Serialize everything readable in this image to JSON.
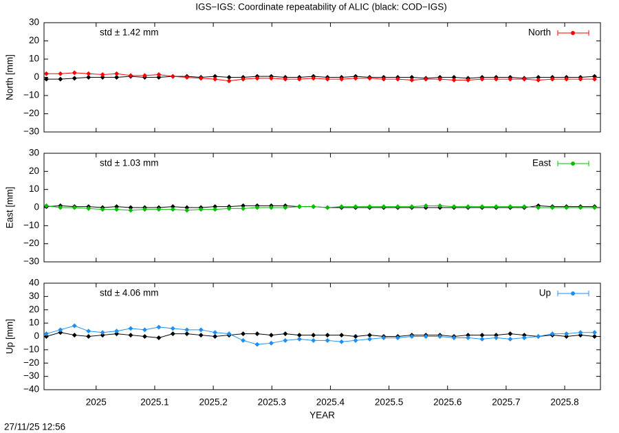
{
  "title": "IGS−IGS: Coordinate repeatability of ALIC (black: COD−IGS)",
  "timestamp": "27/11/25 12:56",
  "chart_data": [
    {
      "type": "line",
      "y_label": "North [mm]",
      "annotation": "std ± 1.42 mm",
      "legend": "top right",
      "xlim": [
        2024.911,
        2025.861
      ],
      "ylim": [
        -30,
        30
      ],
      "yticks": [
        30,
        20,
        10,
        0,
        {
          "value": -10,
          "label": "−10"
        },
        {
          "value": -20,
          "label": "−20"
        },
        {
          "value": -30,
          "label": "−30"
        }
      ],
      "x": [
        2024.915,
        2024.939,
        2024.963,
        2024.987,
        2025.011,
        2025.035,
        2025.059,
        2025.083,
        2025.107,
        2025.131,
        2025.155,
        2025.179,
        2025.203,
        2025.227,
        2025.251,
        2025.275,
        2025.299,
        2025.323,
        2025.347,
        2025.371,
        2025.395,
        2025.419,
        2025.443,
        2025.467,
        2025.491,
        2025.515,
        2025.539,
        2025.563,
        2025.587,
        2025.611,
        2025.635,
        2025.659,
        2025.683,
        2025.707,
        2025.731,
        2025.755,
        2025.779,
        2025.803,
        2025.827,
        2025.851
      ],
      "series": [
        {
          "color": "#000000",
          "values": [
            -1,
            -1,
            -0.5,
            0,
            0,
            0,
            0.5,
            0,
            0,
            0.5,
            0.5,
            0,
            0.5,
            0,
            0,
            0.5,
            0.5,
            0,
            0,
            0.5,
            0,
            0,
            0.5,
            0,
            0,
            0,
            0,
            -0.5,
            0,
            0,
            -0.5,
            0,
            0,
            0,
            -0.5,
            0,
            0,
            0,
            0,
            0.5
          ]
        },
        {
          "name": "North",
          "color": "#ff0000",
          "values": [
            2,
            2,
            2.5,
            2,
            1.5,
            2,
            1,
            1,
            1.5,
            0.5,
            0,
            -0.5,
            -1,
            -2,
            -1,
            -0.5,
            -0.5,
            -1,
            -1,
            -0.5,
            -1,
            -1,
            -0.5,
            -0.5,
            -1,
            -1,
            -1.5,
            -1,
            -1,
            -1.5,
            -1.5,
            -1,
            -1,
            -1,
            -1,
            -1.5,
            -1,
            -1,
            -1,
            -1
          ]
        }
      ]
    },
    {
      "type": "line",
      "y_label": "East [mm]",
      "annotation": "std ± 1.03 mm",
      "legend": "top right",
      "xlim": [
        2024.911,
        2025.861
      ],
      "ylim": [
        -30,
        30
      ],
      "yticks": [
        30,
        20,
        10,
        0,
        {
          "value": -10,
          "label": "−10"
        },
        {
          "value": -20,
          "label": "−20"
        },
        {
          "value": -30,
          "label": "−30"
        }
      ],
      "x": [
        2024.915,
        2024.939,
        2024.963,
        2024.987,
        2025.011,
        2025.035,
        2025.059,
        2025.083,
        2025.107,
        2025.131,
        2025.155,
        2025.179,
        2025.203,
        2025.227,
        2025.251,
        2025.275,
        2025.299,
        2025.323,
        2025.347,
        2025.371,
        2025.395,
        2025.419,
        2025.443,
        2025.467,
        2025.491,
        2025.515,
        2025.539,
        2025.563,
        2025.587,
        2025.611,
        2025.635,
        2025.659,
        2025.683,
        2025.707,
        2025.731,
        2025.755,
        2025.779,
        2025.803,
        2025.827,
        2025.851
      ],
      "series": [
        {
          "color": "#000000",
          "values": [
            0.5,
            1,
            0.5,
            0.5,
            0,
            0.5,
            0,
            0,
            0,
            0.5,
            0,
            0,
            0.5,
            0.5,
            1,
            1,
            1,
            1,
            0.5,
            0.5,
            0,
            0,
            0,
            0,
            0,
            0,
            0,
            0,
            0,
            0,
            0,
            0,
            0,
            0,
            0,
            1,
            0.5,
            0.5,
            0.5,
            0.5
          ]
        },
        {
          "name": "East",
          "color": "#00c000",
          "values": [
            1,
            0,
            0,
            -0.5,
            -1,
            -1,
            -1.5,
            -1,
            -1,
            -1,
            -1.5,
            -1,
            -1,
            -0.5,
            -0.5,
            0,
            0,
            0,
            0.5,
            0.5,
            0,
            0.5,
            0.5,
            0.5,
            0.5,
            0.5,
            0.5,
            1,
            1,
            0.5,
            0.5,
            0.5,
            0.5,
            0.5,
            0.5,
            0,
            0,
            0,
            0,
            0
          ]
        }
      ]
    },
    {
      "type": "line",
      "y_label": "Up [mm]",
      "x_label": "YEAR",
      "annotation": "std ± 4.06 mm",
      "legend": "top right",
      "xlim": [
        2024.911,
        2025.861
      ],
      "ylim": [
        -40,
        40
      ],
      "xticks": [
        2025,
        2025.1,
        2025.2,
        2025.3,
        2025.4,
        2025.5,
        2025.6,
        2025.7,
        2025.8
      ],
      "yticks": [
        40,
        30,
        20,
        10,
        0,
        {
          "value": -10,
          "label": "−10"
        },
        {
          "value": -20,
          "label": "−20"
        },
        {
          "value": -30,
          "label": "−30"
        },
        {
          "value": -40,
          "label": "−40"
        }
      ],
      "x": [
        2024.915,
        2024.939,
        2024.963,
        2024.987,
        2025.011,
        2025.035,
        2025.059,
        2025.083,
        2025.107,
        2025.131,
        2025.155,
        2025.179,
        2025.203,
        2025.227,
        2025.251,
        2025.275,
        2025.299,
        2025.323,
        2025.347,
        2025.371,
        2025.395,
        2025.419,
        2025.443,
        2025.467,
        2025.491,
        2025.515,
        2025.539,
        2025.563,
        2025.587,
        2025.611,
        2025.635,
        2025.659,
        2025.683,
        2025.707,
        2025.731,
        2025.755,
        2025.779,
        2025.803,
        2025.827,
        2025.851
      ],
      "series": [
        {
          "color": "#000000",
          "values": [
            0,
            3,
            1,
            0,
            1,
            2,
            1,
            0,
            -1,
            2,
            2,
            1,
            0,
            1,
            2,
            2,
            1,
            2,
            1,
            1,
            1,
            1,
            0,
            1,
            0,
            0,
            1,
            1,
            1,
            0,
            1,
            1,
            1,
            2,
            1,
            0,
            1,
            0,
            1,
            0
          ]
        },
        {
          "name": "Up",
          "color": "#1e8fef",
          "values": [
            2,
            5,
            8,
            4,
            3,
            4,
            6,
            5,
            7,
            6,
            5,
            5,
            3,
            2,
            -3,
            -6,
            -5,
            -3,
            -2,
            -3,
            -3,
            -4,
            -3,
            -2,
            -1,
            -1,
            0,
            0,
            0,
            -1,
            -1,
            -2,
            -1,
            -2,
            -1,
            0,
            2,
            2,
            3,
            3
          ]
        }
      ]
    }
  ]
}
